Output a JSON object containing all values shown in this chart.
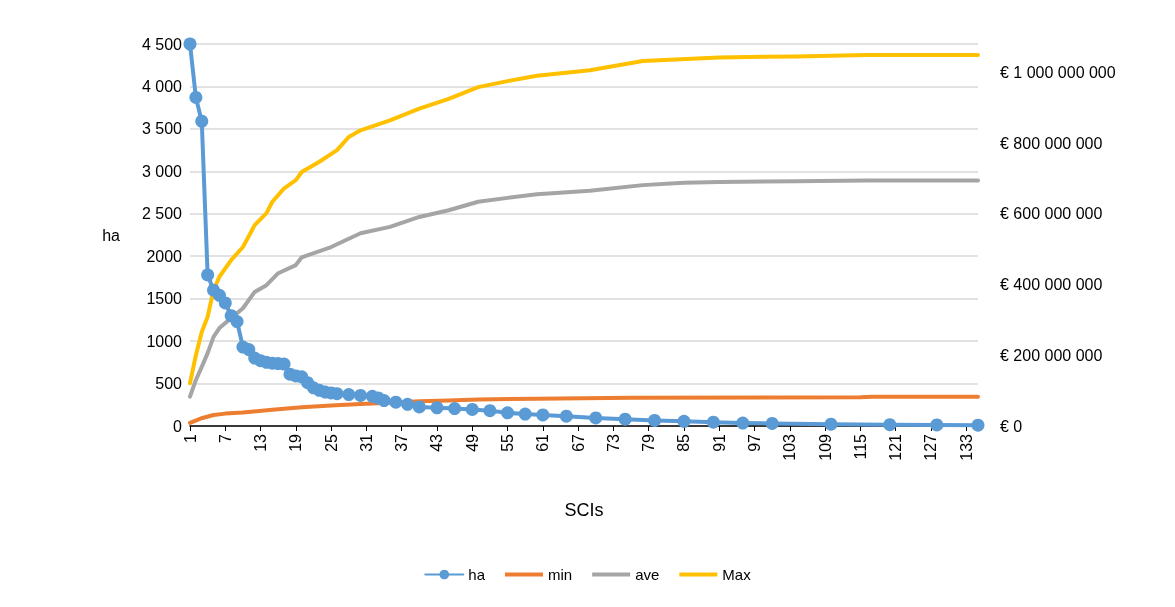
{
  "chart_data": {
    "type": "line",
    "xlabel": "SCIs",
    "ylabel": "ha",
    "legend": "bottom",
    "grid": "y",
    "line_style": "solid",
    "xlim": [
      1,
      135
    ],
    "xticks": [
      1,
      7,
      13,
      19,
      25,
      31,
      37,
      43,
      49,
      55,
      61,
      67,
      73,
      79,
      85,
      91,
      97,
      103,
      109,
      115,
      121,
      127,
      133
    ],
    "ylim": [
      0,
      4500
    ],
    "yticks": [
      0,
      500,
      1000,
      1500,
      2000,
      {
        "value": 2500,
        "label": "2 500"
      },
      {
        "value": 3000,
        "label": "3 000"
      },
      {
        "value": 3500,
        "label": "3 500"
      },
      {
        "value": 4000,
        "label": "4 000"
      },
      {
        "value": 4500,
        "label": "4 500"
      }
    ],
    "y2lim": [
      0,
      1080000000
    ],
    "y2ticks": [
      {
        "value": 0,
        "label": "€ 0"
      },
      {
        "value": 200000000,
        "label": "€ 200 000 000"
      },
      {
        "value": 400000000,
        "label": "€ 400 000 000"
      },
      {
        "value": 600000000,
        "label": "€ 600 000 000"
      },
      {
        "value": 800000000,
        "label": "€ 800 000 000"
      },
      {
        "value": 1000000000,
        "label": "€ 1 000 000 000"
      }
    ],
    "series": [
      {
        "name": "ha",
        "color": "#5b9bd5",
        "marker": "circle",
        "x": [
          1,
          2,
          3,
          4,
          5,
          6,
          7,
          8,
          9,
          10,
          11,
          12,
          13,
          14,
          15,
          16,
          17,
          18,
          19,
          20,
          21,
          22,
          23,
          24,
          25,
          26,
          28,
          30,
          32,
          33,
          34,
          36,
          38,
          40,
          43,
          46,
          49,
          52,
          55,
          58,
          61,
          65,
          70,
          75,
          80,
          85,
          90,
          95,
          100,
          110,
          120,
          128,
          135
        ],
        "values": [
          4500,
          3870,
          3590,
          1780,
          1600,
          1540,
          1450,
          1300,
          1230,
          930,
          900,
          800,
          770,
          750,
          740,
          735,
          730,
          610,
          590,
          580,
          510,
          450,
          420,
          400,
          390,
          380,
          370,
          360,
          350,
          330,
          300,
          280,
          255,
          225,
          215,
          205,
          195,
          180,
          155,
          140,
          130,
          115,
          95,
          80,
          65,
          55,
          45,
          35,
          30,
          22,
          15,
          12,
          10
        ]
      },
      {
        "name": "min",
        "color": "#ed7d31",
        "marker": "none",
        "axis": "y2",
        "x": [
          1,
          3,
          5,
          7,
          10,
          15,
          20,
          25,
          30,
          35,
          40,
          45,
          50,
          60,
          76,
          115,
          117,
          135
        ],
        "values": [
          9000000,
          22000000,
          31000000,
          35000000,
          38000000,
          46000000,
          53000000,
          58000000,
          62000000,
          66000000,
          70000000,
          72000000,
          75000000,
          77000000,
          80000000,
          81000000,
          83000000,
          83000000
        ]
      },
      {
        "name": "ave",
        "color": "#a5a5a5",
        "marker": "none",
        "axis": "y2",
        "x": [
          1,
          2,
          3,
          4,
          5,
          6,
          8,
          10,
          12,
          14,
          16,
          19,
          20,
          25,
          30,
          35,
          40,
          45,
          50,
          55,
          60,
          69,
          78,
          85,
          91,
          104,
          116,
          135
        ],
        "values": [
          83000000,
          130000000,
          167000000,
          206000000,
          252000000,
          277000000,
          305000000,
          333000000,
          379000000,
          398000000,
          432000000,
          455000000,
          477000000,
          506000000,
          545000000,
          563000000,
          591000000,
          610000000,
          634000000,
          645000000,
          655000000,
          665000000,
          681000000,
          688000000,
          690000000,
          692000000,
          694000000,
          694000000
        ]
      },
      {
        "name": "Max",
        "color": "#ffc000",
        "marker": "none",
        "axis": "y2",
        "x": [
          1,
          2,
          3,
          4,
          5,
          6,
          8,
          10,
          12,
          14,
          15,
          17,
          19,
          20,
          23,
          26,
          28,
          30,
          35,
          40,
          45,
          50,
          55,
          60,
          69,
          78,
          91,
          104,
          116,
          135
        ],
        "values": [
          121000000,
          200000000,
          266000000,
          309000000,
          384000000,
          422000000,
          469000000,
          506000000,
          568000000,
          602000000,
          634000000,
          672000000,
          695000000,
          718000000,
          747000000,
          780000000,
          817000000,
          836000000,
          864000000,
          897000000,
          925000000,
          958000000,
          975000000,
          990000000,
          1006000000,
          1032000000,
          1042000000,
          1045000000,
          1049000000,
          1049000000
        ]
      }
    ]
  }
}
